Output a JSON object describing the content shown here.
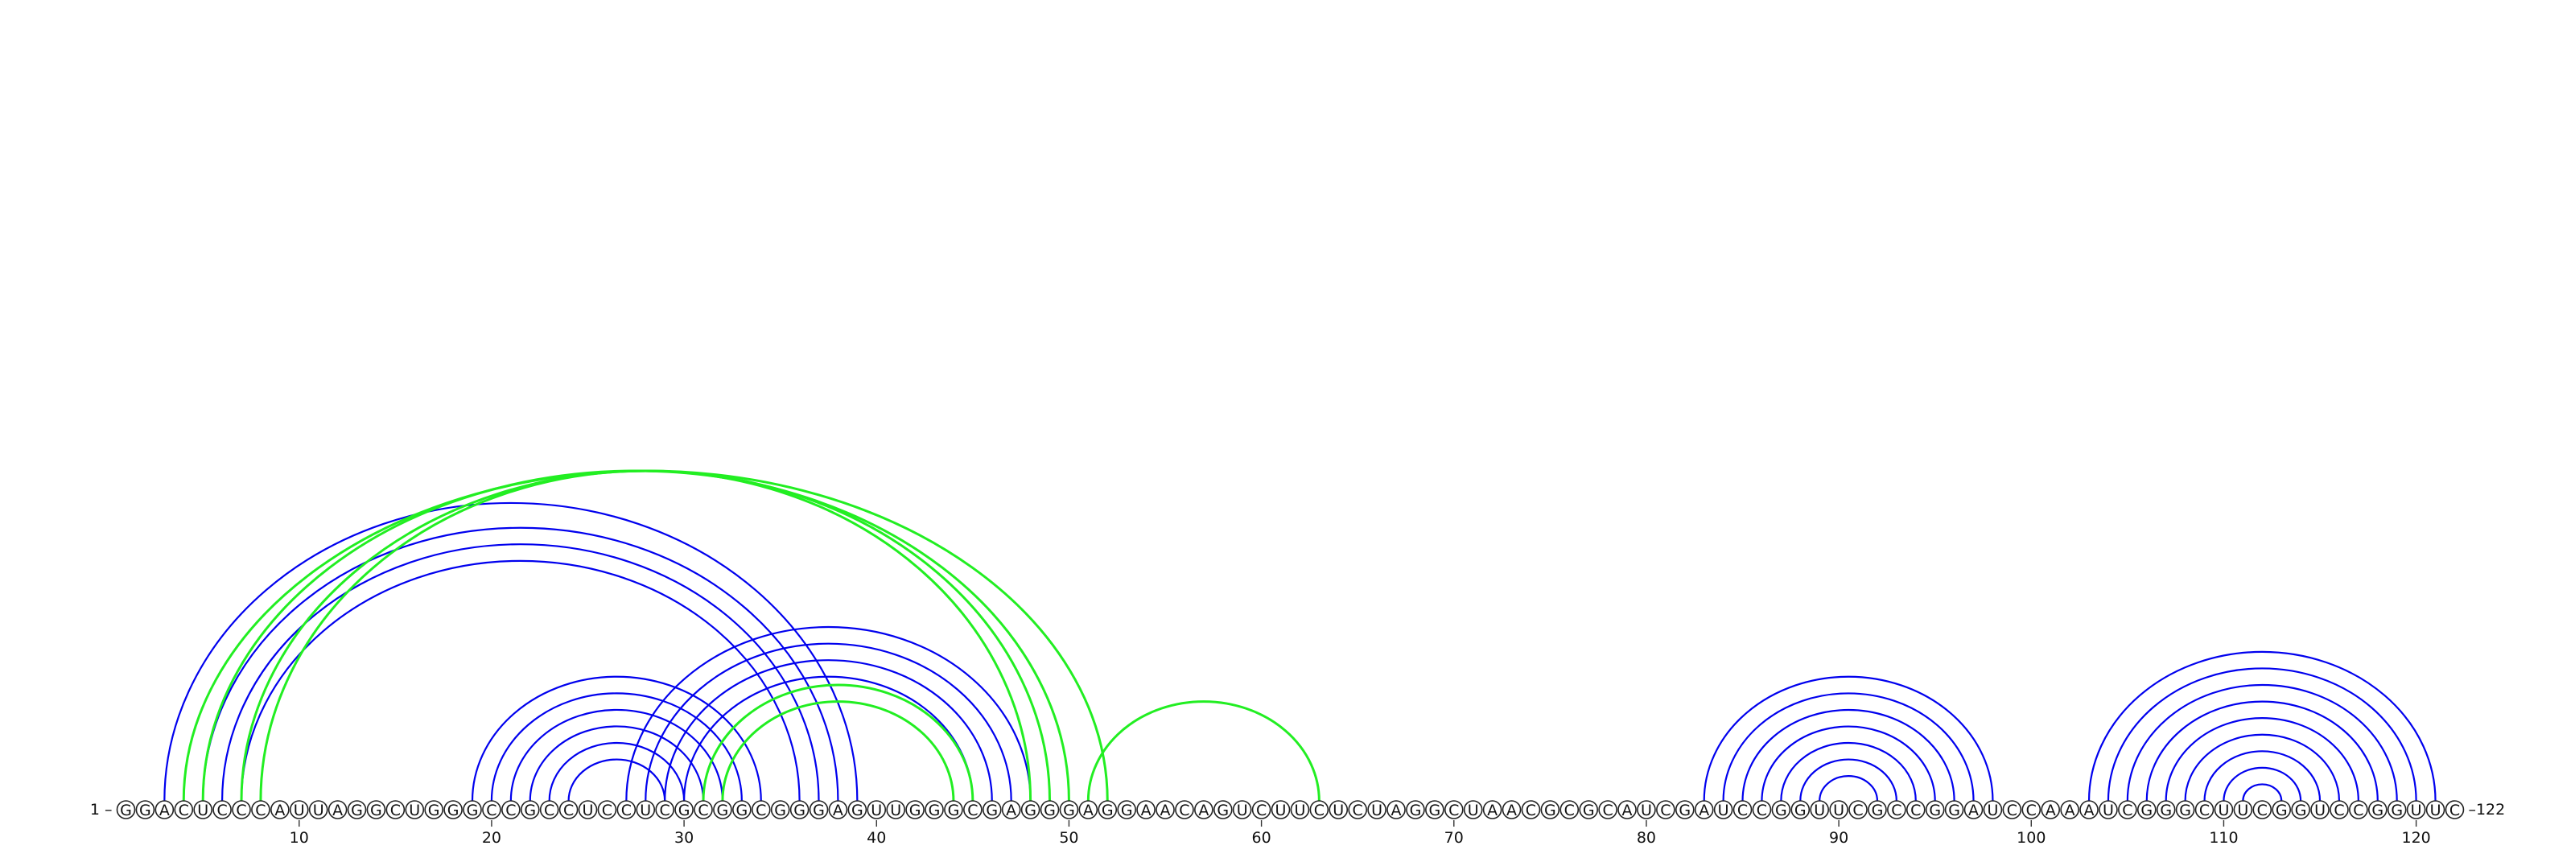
{
  "diagram": {
    "start_label": "1 –",
    "end_label": "–122",
    "sequence": "GGACUCCCAUUAGGCUGGGCCGCCUCCUCGCGGCGGGAGUUGGGCGAGGGAGGAACAGUCUUCUCUAGGCUAACGCGCAUCGAUCCGGUUCGCCGGAUCCAAAUCGGGCUUCGGUCCGGUUC",
    "tick_labels": [
      "10",
      "20",
      "30",
      "40",
      "50",
      "60",
      "70",
      "80",
      "90",
      "100",
      "110",
      "120"
    ],
    "colors": {
      "structure_a": "#0000ee",
      "structure_b": "#22ee22",
      "nucleotide_outline": "#222222",
      "text": "#111111"
    }
  },
  "chart_data": {
    "type": "arc",
    "length": 122,
    "ticks": [
      10,
      20,
      30,
      40,
      50,
      60,
      70,
      80,
      90,
      100,
      110,
      120
    ],
    "series": [
      {
        "pairs": [
          [
            3,
            39
          ],
          [
            5,
            38
          ],
          [
            6,
            37
          ],
          [
            7,
            36
          ],
          [
            19,
            34
          ],
          [
            20,
            33
          ],
          [
            21,
            32
          ],
          [
            22,
            31
          ],
          [
            23,
            30
          ],
          [
            24,
            29
          ],
          [
            27,
            48
          ],
          [
            28,
            47
          ],
          [
            29,
            46
          ],
          [
            30,
            45
          ],
          [
            83,
            98
          ],
          [
            84,
            97
          ],
          [
            85,
            96
          ],
          [
            86,
            95
          ],
          [
            87,
            94
          ],
          [
            88,
            93
          ],
          [
            89,
            92
          ],
          [
            103,
            121
          ],
          [
            104,
            120
          ],
          [
            105,
            119
          ],
          [
            106,
            118
          ],
          [
            107,
            117
          ],
          [
            108,
            116
          ],
          [
            109,
            115
          ],
          [
            110,
            114
          ],
          [
            111,
            113
          ]
        ]
      },
      {
        "pairs": [
          [
            4,
            52
          ],
          [
            5,
            50
          ],
          [
            7,
            49
          ],
          [
            8,
            48
          ],
          [
            31,
            45
          ],
          [
            32,
            44
          ],
          [
            51,
            63
          ]
        ]
      }
    ]
  }
}
